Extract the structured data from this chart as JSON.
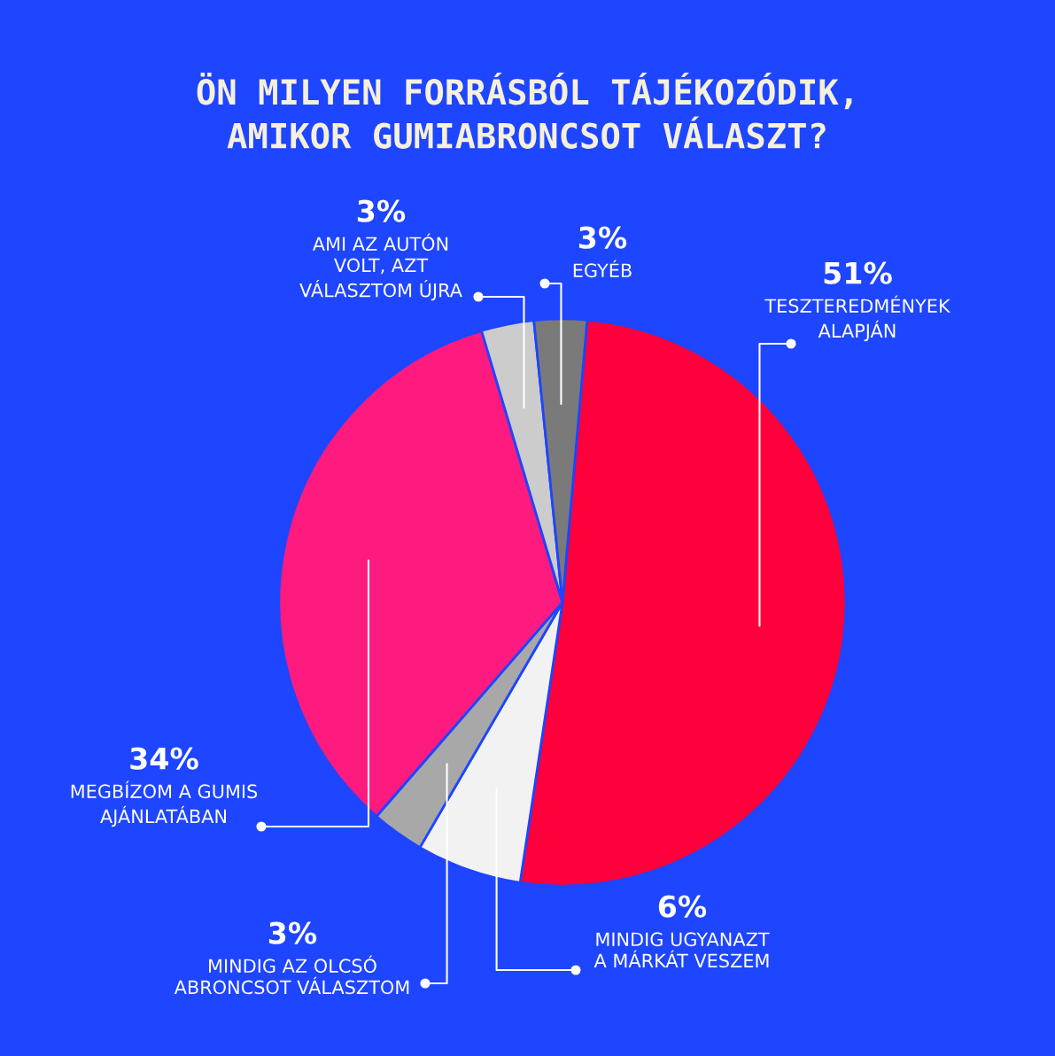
{
  "chart_data": {
    "type": "pie",
    "title": "ÖN MILYEN FORRÁSBÓL TÁJÉKOZÓDIK,\nAMIKOR GUMIABRONCSOT VÁLASZT?",
    "categories": [
      "TESZTEREDMÉNYEK\nALAPJÁN",
      "MINDIG UGYANAZT\nA MÁRKÁT VESZEM",
      "MINDIG AZ OLCSÓ\nABRONCSOT VÁLASZTOM",
      "MEGBÍZOM A GUMIS\nAJÁNLATÁBAN",
      "AMI AZ AUTÓN\nVOLT, AZT\nVÁLASZTOM ÚJRA",
      "EGYÉB"
    ],
    "values": [
      51,
      6,
      3,
      34,
      3,
      3
    ],
    "value_labels": [
      "51%",
      "6%",
      "3%",
      "34%",
      "3%",
      "3%"
    ],
    "colors": [
      "#ff003c",
      "#f2f2f2",
      "#a8a8a8",
      "#ff1a80",
      "#cccccc",
      "#7a7a7a"
    ]
  }
}
